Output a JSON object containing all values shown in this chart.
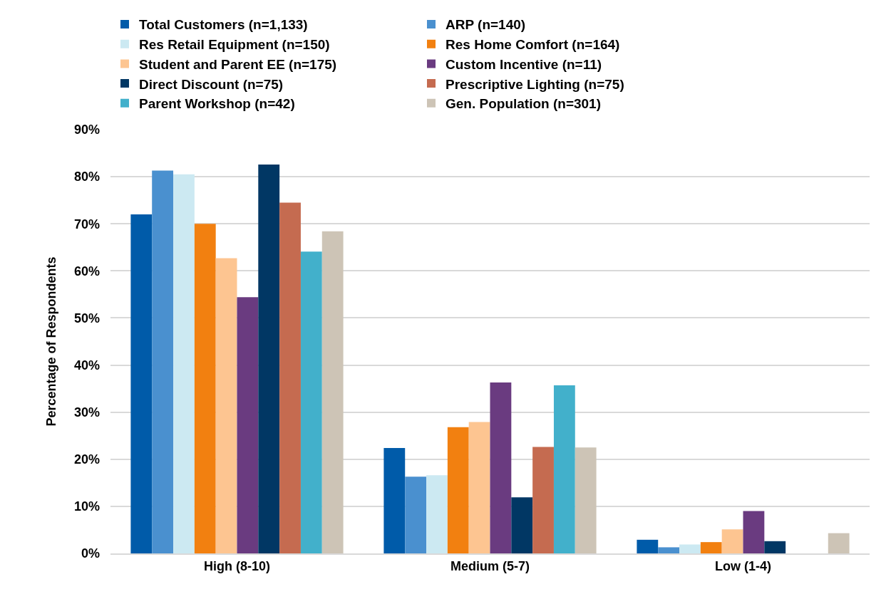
{
  "chart_data": {
    "type": "bar",
    "ylabel": "Percentage of Respondents",
    "categories": [
      "High (8-10)",
      "Medium (5-7)",
      "Low (1-4)"
    ],
    "series": [
      {
        "name": "Total Customers (n=1,133)",
        "color": "#005ba9",
        "values": [
          72.0,
          22.4,
          2.9
        ]
      },
      {
        "name": "ARP (n=140)",
        "color": "#4a90cf",
        "values": [
          81.3,
          16.3,
          1.3
        ]
      },
      {
        "name": "Res Retail Equipment (n=150)",
        "color": "#cce9f2",
        "values": [
          80.5,
          16.6,
          1.9
        ]
      },
      {
        "name": "Res Home Comfort (n=164)",
        "color": "#f28010",
        "values": [
          70.0,
          26.8,
          2.4
        ]
      },
      {
        "name": "Student and Parent EE (n=175)",
        "color": "#fdc591",
        "values": [
          62.7,
          27.9,
          5.1
        ]
      },
      {
        "name": "Custom Incentive (n=11)",
        "color": "#6a3b80",
        "values": [
          54.4,
          36.3,
          9.0
        ]
      },
      {
        "name": "Direct Discount (n=75)",
        "color": "#013764",
        "values": [
          82.6,
          11.9,
          2.6
        ]
      },
      {
        "name": "Prescriptive Lighting (n=75)",
        "color": "#c56b50",
        "values": [
          74.5,
          22.6,
          0
        ]
      },
      {
        "name": "Parent Workshop (n=42)",
        "color": "#42b0cb",
        "values": [
          64.1,
          35.7,
          0
        ]
      },
      {
        "name": "Gen. Population (n=301)",
        "color": "#cdc4b6",
        "values": [
          68.4,
          22.5,
          4.3
        ]
      }
    ],
    "ylim": [
      0,
      90
    ],
    "yticks": [
      {
        "value": 0,
        "label": "0%"
      },
      {
        "value": 10,
        "label": "10%"
      },
      {
        "value": 20,
        "label": "20%"
      },
      {
        "value": 30,
        "label": "30%"
      },
      {
        "value": 40,
        "label": "40%"
      },
      {
        "value": 50,
        "label": "50%"
      },
      {
        "value": 60,
        "label": "60%"
      },
      {
        "value": 70,
        "label": "70%"
      },
      {
        "value": 80,
        "label": "80%"
      },
      {
        "value": 90,
        "label": "90%"
      }
    ],
    "grid": "y",
    "legend": "top"
  }
}
